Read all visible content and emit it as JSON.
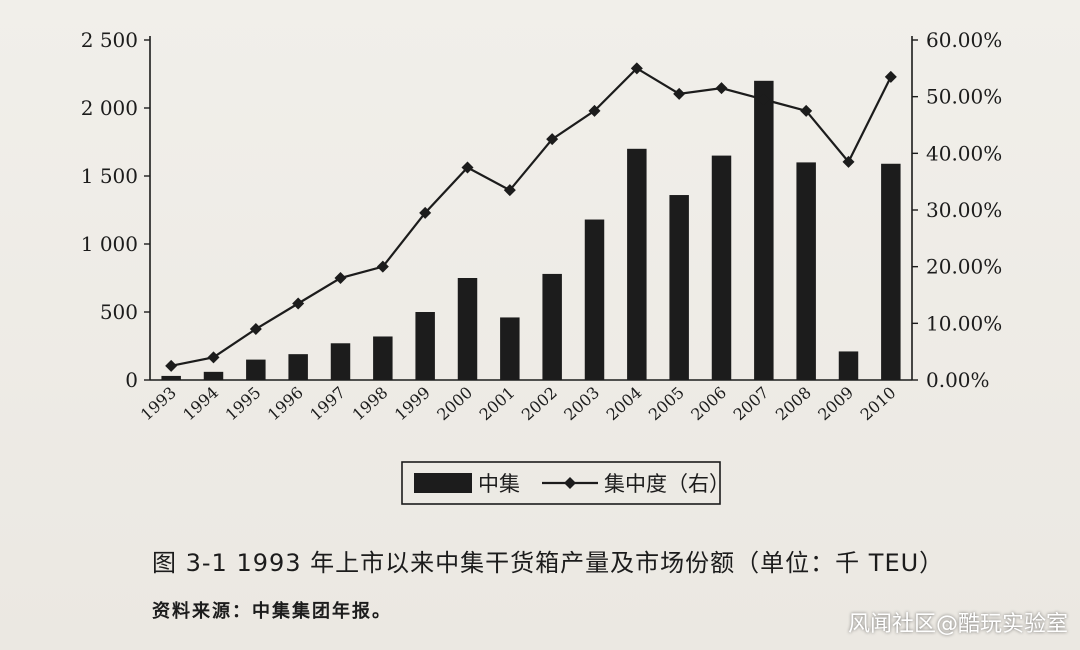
{
  "chart_data": {
    "type": "bar",
    "categories": [
      "1993",
      "1994",
      "1995",
      "1996",
      "1997",
      "1998",
      "1999",
      "2000",
      "2001",
      "2002",
      "2003",
      "2004",
      "2005",
      "2006",
      "2007",
      "2008",
      "2009",
      "2010"
    ],
    "series": [
      {
        "name": "中集",
        "type": "bar",
        "axis": "left",
        "values": [
          30,
          60,
          150,
          190,
          270,
          320,
          500,
          750,
          460,
          780,
          1180,
          1700,
          1360,
          1650,
          2200,
          1600,
          210,
          1590
        ]
      },
      {
        "name": "集中度（右）",
        "type": "line",
        "axis": "right",
        "values": [
          2.5,
          4.0,
          9.0,
          13.5,
          18.0,
          20.0,
          29.5,
          37.5,
          33.5,
          42.5,
          47.5,
          55.0,
          50.5,
          51.5,
          49.5,
          47.5,
          38.5,
          53.5
        ]
      }
    ],
    "y_left": {
      "ylim": [
        0,
        2500
      ],
      "ticks": [
        0,
        500,
        1000,
        1500,
        2000,
        2500
      ],
      "tick_labels": [
        "0",
        "500",
        "1 000",
        "1 500",
        "2 000",
        "2 500"
      ]
    },
    "y_right": {
      "ylim": [
        0,
        60
      ],
      "ticks": [
        0,
        10,
        20,
        30,
        40,
        50,
        60
      ],
      "tick_labels": [
        "0.00%",
        "10.00%",
        "20.00%",
        "30.00%",
        "40.00%",
        "50.00%",
        "60.00%"
      ]
    },
    "grid": false,
    "legend_position": "bottom",
    "title": "图 3-1   1993 年上市以来中集干货箱产量及市场份额（单位：千 TEU）",
    "source": "资料来源：中集集团年报。",
    "colors": {
      "bar": "#1c1c1c",
      "line": "#1c1c1c",
      "axis": "#1c1c1c"
    }
  },
  "watermark": "风闻社区@酷玩实验室"
}
